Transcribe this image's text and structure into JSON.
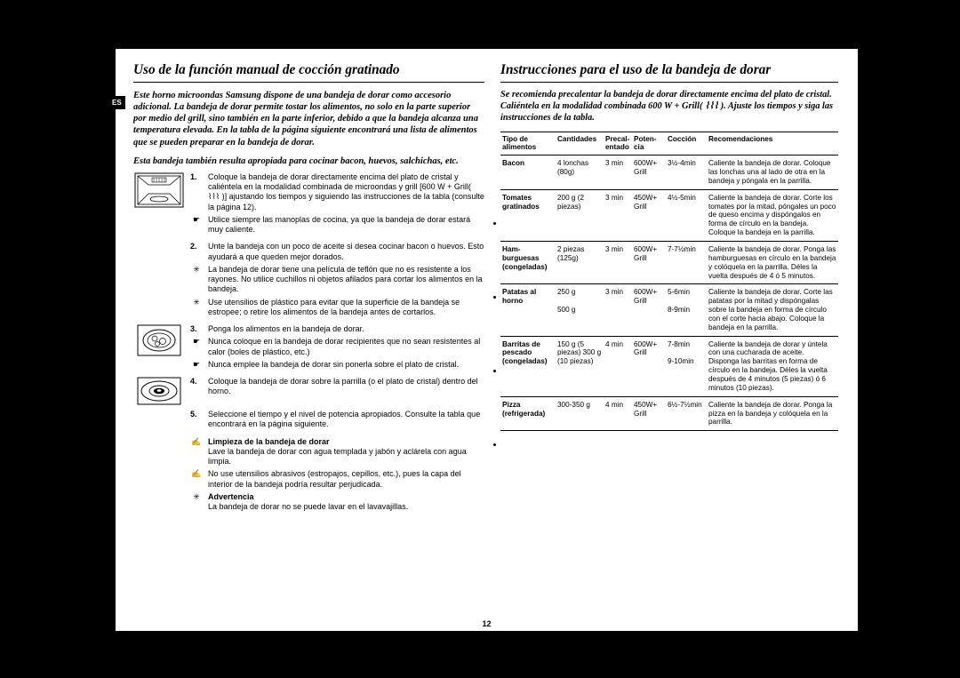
{
  "lang_badge": "ES",
  "page_number": "12",
  "left": {
    "heading": "Uso de la función manual de cocción gratinado",
    "intro1": "Este horno microondas Samsung dispone de una bandeja de dorar como accesorio adicional. La bandeja de dorar permite tostar los alimentos, no solo en la parte superior por medio del grill, sino también en la parte inferior, debido a que la bandeja alcanza una temperatura elevada. En la tabla de la página siguiente encontrará una lista de alimentos que se pueden preparar en la bandeja de dorar.",
    "intro2": "Esta bandeja también resulta apropiada para cocinar bacon, huevos, salchichas, etc.",
    "step1": "Coloque la bandeja de dorar directamente encima del plato de cristal y caliéntela en la modalidad combinada de microondas y grill [600 W + Grill( ⌇⌇⌇ )] ajustando los tiempos y siguiendo las instrucciones de la tabla (consulte la página 12).",
    "step1_b1": "Utilice siempre las manoplas de cocina, ya que la bandeja de dorar estará muy caliente.",
    "step2": "Unte la bandeja con un poco de aceite si desea cocinar bacon o huevos. Esto ayudará a que queden mejor dorados.",
    "step2_b1": "La bandeja de dorar tiene una película de teflón que no es resistente a los rayones. No utilice cuchillos ni objetos afilados para cortar los alimentos en la bandeja.",
    "step2_b2": "Use utensilios de plástico para evitar que la superficie de la bandeja se estropee; o retire los alimentos de la bandeja antes de cortarlos.",
    "step3": "Ponga los alimentos en la bandeja de dorar.",
    "step3_b1": "Nunca coloque en la bandeja de dorar recipientes que no sean resistentes al calor (boles de plástico, etc.)",
    "step3_b2": "Nunca emplee la bandeja de dorar sin ponerla sobre el plato de cristal.",
    "step4": "Coloque la bandeja de dorar sobre la parrilla (o el plato de cristal) dentro del horno.",
    "step5": "Seleccione el tiempo y el nivel de potencia apropiados. Consulte la tabla que encontrará en la página siguiente.",
    "clean_head": "Limpieza de la bandeja de dorar",
    "clean_text": "Lave la bandeja de dorar con agua templada y jabón y aclárela con agua limpia.",
    "warn_b1": "No use utensilios abrasivos (estropajos, cepillos, etc.), pues la capa del interior de la bandeja podría resultar perjudicada.",
    "warn_head": "Advertencia",
    "warn_text": "La bandeja de dorar no se puede lavar en el lavavajillas."
  },
  "right": {
    "heading": "Instrucciones para el uso de la bandeja de dorar",
    "intro": "Se recomienda precalentar la bandeja de dorar directamente encima del plato de cristal. Caliéntela en la modalidad combinada 600 W + Grill( ⌇⌇⌇ ). Ajuste los tiempos y siga las instrucciones de la tabla.",
    "headers": {
      "c1": "Tipo de alimentos",
      "c2": "Cantidades",
      "c3": "Precal-entado",
      "c4": "Poten-cia",
      "c5": "Cocción",
      "c6": "Recomendaciones"
    },
    "rows": [
      {
        "food": "Bacon",
        "qty": "4 lonchas (80g)",
        "pre": "3 min",
        "pot": "600W+ Grill",
        "cook": "3½-4min",
        "rec": "Caliente la bandeja de dorar. Coloque las lonchas una al lado de otra en la bandeja y póngala en la parrilla."
      },
      {
        "food": "Tomates gratinados",
        "qty": "200 g (2 piezas)",
        "pre": "3 min",
        "pot": "450W+ Grill",
        "cook": "4½-5min",
        "rec": "Caliente la bandeja de dorar. Corte los tomates por la mitad, póngales un poco de queso encima y dispóngalos en forma de círculo en la bandeja. Coloque la bandeja en la parrilla."
      },
      {
        "food": "Ham-burguesas (congeladas)",
        "qty": "2 piezas (125g)",
        "pre": "3 min",
        "pot": "600W+ Grill",
        "cook": "7-7½min",
        "rec": "Caliente la bandeja de dorar. Ponga las hamburguesas en círculo en la bandeja y colóquela en la parrilla. Déles la vuelta después de 4 ó 5 minutos."
      },
      {
        "food": "Patatas al horno",
        "qty": "250 g\n\n500 g",
        "pre": "3 min",
        "pot": "600W+ Grill",
        "cook": "5-6min\n\n8-9min",
        "rec": "Caliente la bandeja de dorar. Corte las patatas por la mitad y dispóngalas sobre la bandeja en forma de círculo con el corte hacia abajo. Coloque la bandeja en la parrilla."
      },
      {
        "food": "Barritas de pescado (congeladas)",
        "qty": "150 g (5 piezas) 300 g (10 piezas)",
        "pre": "4 min",
        "pot": "600W+ Grill",
        "cook": "7-8min\n\n9-10min",
        "rec": "Caliente la bandeja de dorar y úntela con una cucharada de aceite. Disponga las barritas en forma de círculo en la bandeja. Déles la vuelta después de 4 minutos (5 piezas) ó 6 minutos (10 piezas)."
      },
      {
        "food": "Pizza (refrigerada)",
        "qty": "300-350 g",
        "pre": "4 min",
        "pot": "450W+ Grill",
        "cook": "6½-7½min",
        "rec": "Caliente la bandeja de dorar. Ponga la pizza en la bandeja y colóquela en la parrilla."
      }
    ]
  }
}
